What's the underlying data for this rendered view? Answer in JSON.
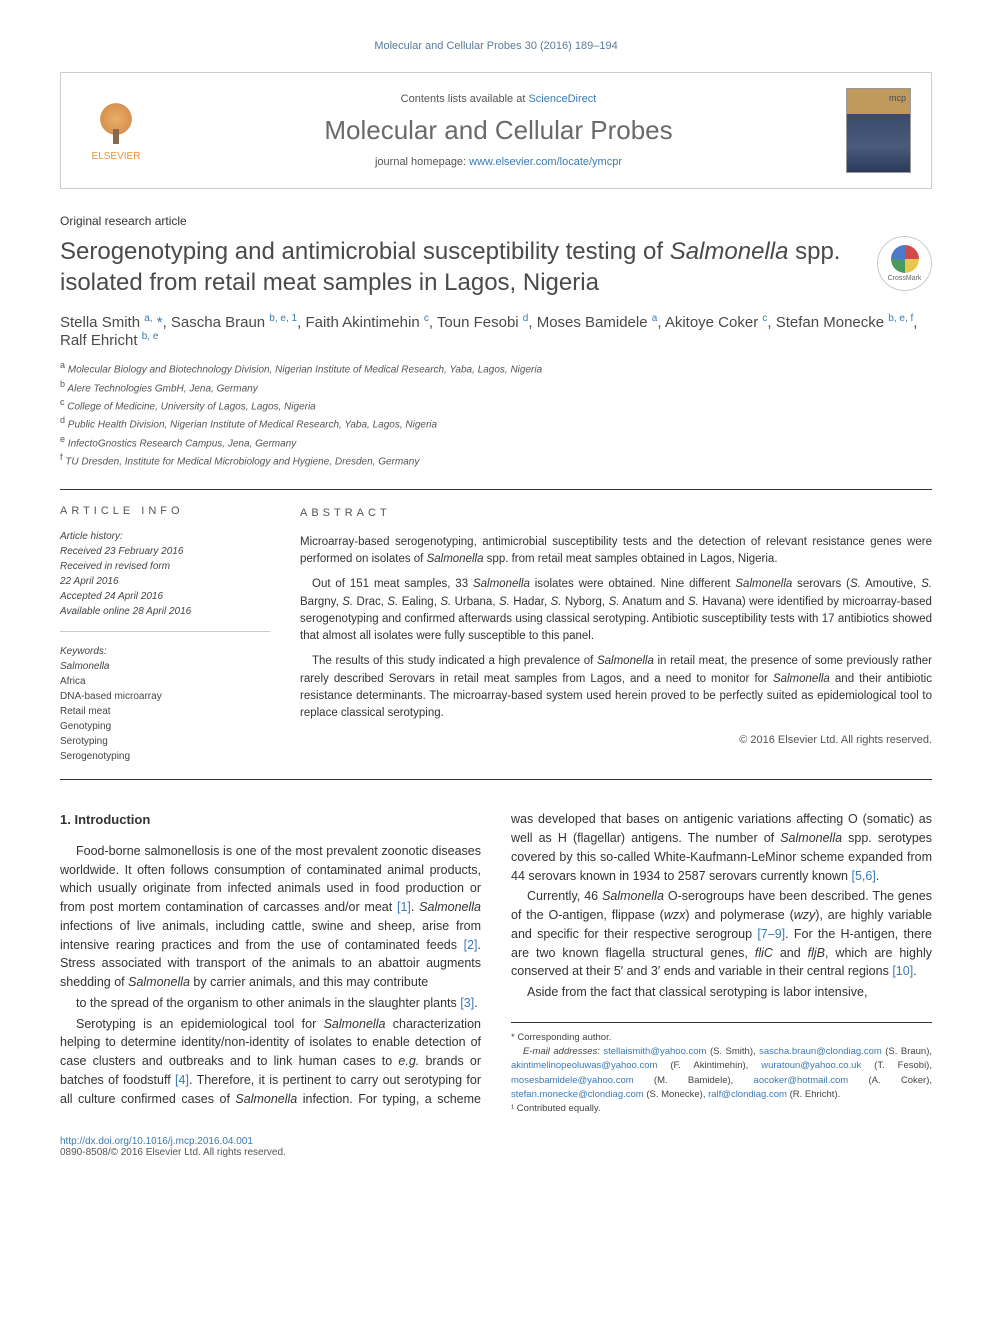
{
  "header": {
    "citation": "Molecular and Cellular Probes 30 (2016) 189–194"
  },
  "contentsBox": {
    "publisher": "ELSEVIER",
    "listsLine": "Contents lists available at ",
    "listsLink": "ScienceDirect",
    "journalName": "Molecular and Cellular Probes",
    "homeLine": "journal homepage: ",
    "homeLink": "www.elsevier.com/locate/ymcpr"
  },
  "article": {
    "type": "Original research article",
    "title": "Serogenotyping and antimicrobial susceptibility testing of Salmonella spp. isolated from retail meat samples in Lagos, Nigeria",
    "crossmark": "CrossMark"
  },
  "authors": {
    "line": "Stella Smith <sup>a, *</sup>, Sascha Braun <sup>b, e, 1</sup>, Faith Akintimehin <sup>c</sup>, Toun Fesobi <sup>d</sup>, Moses Bamidele <sup>a</sup>, Akitoye Coker <sup>c</sup>, Stefan Monecke <sup>b, e, f</sup>, Ralf Ehricht <sup>b, e</sup>"
  },
  "affiliations": [
    {
      "sup": "a",
      "text": "Molecular Biology and Biotechnology Division, Nigerian Institute of Medical Research, Yaba, Lagos, Nigeria"
    },
    {
      "sup": "b",
      "text": "Alere Technologies GmbH, Jena, Germany"
    },
    {
      "sup": "c",
      "text": "College of Medicine, University of Lagos, Lagos, Nigeria"
    },
    {
      "sup": "d",
      "text": "Public Health Division, Nigerian Institute of Medical Research, Yaba, Lagos, Nigeria"
    },
    {
      "sup": "e",
      "text": "InfectoGnostics Research Campus, Jena, Germany"
    },
    {
      "sup": "f",
      "text": "TU Dresden, Institute for Medical Microbiology and Hygiene, Dresden, Germany"
    }
  ],
  "info": {
    "header": "ARTICLE INFO",
    "historyLabel": "Article history:",
    "history": [
      "Received 23 February 2016",
      "Received in revised form",
      "22 April 2016",
      "Accepted 24 April 2016",
      "Available online 28 April 2016"
    ],
    "keywordsLabel": "Keywords:",
    "keywords": [
      {
        "text": "Salmonella",
        "italic": true
      },
      {
        "text": "Africa",
        "italic": false
      },
      {
        "text": "DNA-based microarray",
        "italic": false
      },
      {
        "text": "Retail meat",
        "italic": false
      },
      {
        "text": "Genotyping",
        "italic": false
      },
      {
        "text": "Serotyping",
        "italic": false
      },
      {
        "text": "Serogenotyping",
        "italic": false
      }
    ]
  },
  "abstract": {
    "header": "ABSTRACT",
    "paragraphs": [
      "Microarray-based serogenotyping, antimicrobial susceptibility tests and the detection of relevant resistance genes were performed on isolates of Salmonella spp. from retail meat samples obtained in Lagos, Nigeria.",
      "Out of 151 meat samples, 33 Salmonella isolates were obtained. Nine different Salmonella serovars (S. Amoutive, S. Bargny, S. Drac, S. Ealing, S. Urbana, S. Hadar, S. Nyborg, S. Anatum and S. Havana) were identified by microarray-based serogenotyping and confirmed afterwards using classical serotyping. Antibiotic susceptibility tests with 17 antibiotics showed that almost all isolates were fully susceptible to this panel.",
      "The results of this study indicated a high prevalence of Salmonella in retail meat, the presence of some previously rather rarely described Serovars in retail meat samples from Lagos, and a need to monitor for Salmonella and their antibiotic resistance determinants. The microarray-based system used herein proved to be perfectly suited as epidemiological tool to replace classical serotyping."
    ],
    "copyright": "© 2016 Elsevier Ltd. All rights reserved."
  },
  "body": {
    "sectionNum": "1.",
    "sectionTitle": "Introduction",
    "paragraphs": [
      "Food-borne salmonellosis is one of the most prevalent zoonotic diseases worldwide. It often follows consumption of contaminated animal products, which usually originate from infected animals used in food production or from post mortem contamination of carcasses and/or meat [1]. Salmonella infections of live animals, including cattle, swine and sheep, arise from intensive rearing practices and from the use of contaminated feeds [2]. Stress associated with transport of the animals to an abattoir augments shedding of Salmonella by carrier animals, and this may contribute",
      "to the spread of the organism to other animals in the slaughter plants [3].",
      "Serotyping is an epidemiological tool for Salmonella characterization helping to determine identity/non-identity of isolates to enable detection of case clusters and outbreaks and to link human cases to e.g. brands or batches of foodstuff [4]. Therefore, it is pertinent to carry out serotyping for all culture confirmed cases of Salmonella infection. For typing, a scheme was developed that bases on antigenic variations affecting O (somatic) as well as H (flagellar) antigens. The number of Salmonella spp. serotypes covered by this so-called White-Kaufmann-LeMinor scheme expanded from 44 serovars known in 1934 to 2587 serovars currently known [5,6].",
      "Currently, 46 Salmonella O-serogroups have been described. The genes of the O-antigen, flippase (wzx) and polymerase (wzy), are highly variable and specific for their respective serogroup [7–9]. For the H-antigen, there are two known flagella structural genes, fliC and fljB, which are highly conserved at their 5′ and 3′ ends and variable in their central regions [10].",
      "Aside from the fact that classical serotyping is labor intensive,"
    ]
  },
  "footnotes": {
    "corr": "* Corresponding author.",
    "emailLabel": "E-mail addresses:",
    "emails": "stellaismith@yahoo.com (S. Smith), sascha.braun@clondiag.com (S. Braun), akintimelinopeoluwas@yahoo.com (F. Akintimehin), wuratoun@yahoo.co.uk (T. Fesobi), mosesbamidele@yahoo.com (M. Bamidele), aocoker@hotmail.com (A. Coker), stefan.monecke@clondiag.com (S. Monecke), ralf@clondiag.com (R. Ehricht).",
    "contrib": "¹ Contributed equally."
  },
  "footer": {
    "doi": "http://dx.doi.org/10.1016/j.mcp.2016.04.001",
    "issn": "0890-8508/© 2016 Elsevier Ltd. All rights reserved."
  },
  "colors": {
    "link": "#3a7ab5",
    "headerGray": "#5a7a9a",
    "textGray": "#4a4a4a"
  }
}
